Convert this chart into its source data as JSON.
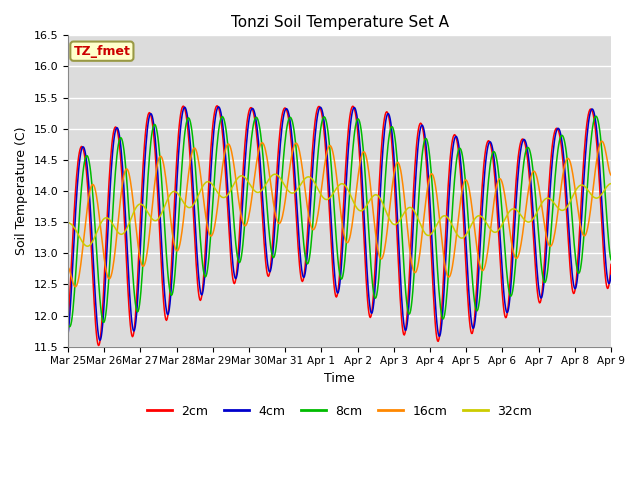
{
  "title": "Tonzi Soil Temperature Set A",
  "xlabel": "Time",
  "ylabel": "Soil Temperature (C)",
  "ylim": [
    11.5,
    16.5
  ],
  "yticks": [
    11.5,
    12.0,
    12.5,
    13.0,
    13.5,
    14.0,
    14.5,
    15.0,
    15.5,
    16.0,
    16.5
  ],
  "xtick_labels": [
    "Mar 25",
    "Mar 26",
    "Mar 27",
    "Mar 28",
    "Mar 29",
    "Mar 30",
    "Mar 31",
    "Apr 1",
    "Apr 2",
    "Apr 3",
    "Apr 4",
    "Apr 5",
    "Apr 6",
    "Apr 7",
    "Apr 8",
    "Apr 9"
  ],
  "series_colors": [
    "#FF0000",
    "#0000CC",
    "#00BB00",
    "#FF8800",
    "#CCCC00"
  ],
  "series_labels": [
    "2cm",
    "4cm",
    "8cm",
    "16cm",
    "32cm"
  ],
  "legend_label": "TZ_fmet",
  "legend_text_color": "#CC0000",
  "legend_bg": "#FFFFCC",
  "legend_border": "#999944",
  "plot_bg": "#DCDCDC",
  "fig_bg": "#FFFFFF"
}
